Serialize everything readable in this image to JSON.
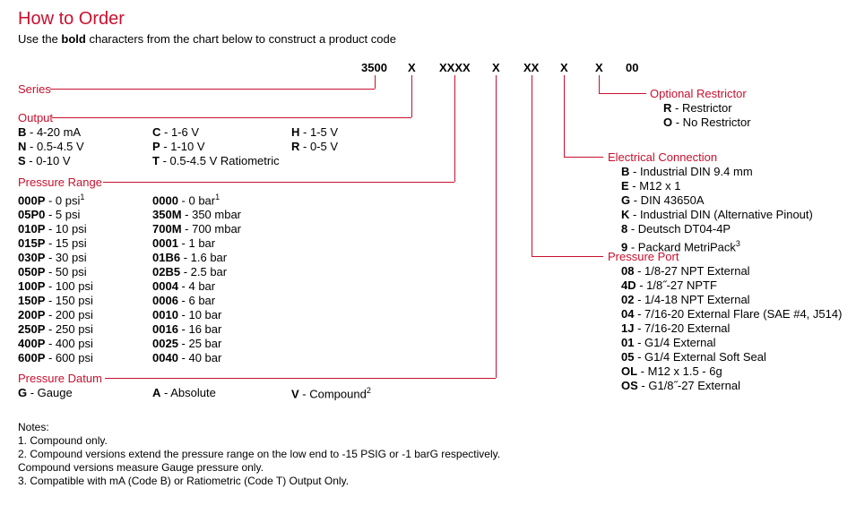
{
  "title": "How to Order",
  "subtitle_parts": {
    "a": "Use the ",
    "b": "bold",
    "c": " characters from the chart below to construct a product code"
  },
  "code_slots": {
    "series": "3500",
    "output": "X",
    "range": "XXXX",
    "datum": "X",
    "port": "XX",
    "conn": "X",
    "restrictor": "X",
    "suffix": "00"
  },
  "labels": {
    "series": "Series",
    "output": "Output",
    "pressure_range": "Pressure Range",
    "pressure_datum": "Pressure Datum",
    "optional_restrictor": "Optional Restrictor",
    "electrical_connection": "Electrical Connection",
    "pressure_port": "Pressure Port",
    "notes": "Notes:"
  },
  "output_opts_col1": [
    {
      "code": "B",
      "desc": " - 4-20 mA"
    },
    {
      "code": "N",
      "desc": " - 0.5-4.5 V"
    },
    {
      "code": "S",
      "desc": " - 0-10 V"
    }
  ],
  "output_opts_col2": [
    {
      "code": "C",
      "desc": " - 1-6 V"
    },
    {
      "code": "P",
      "desc": " - 1-10 V"
    },
    {
      "code": "T",
      "desc": " - 0.5-4.5 V Ratiometric"
    }
  ],
  "output_opts_col3": [
    {
      "code": "H",
      "desc": " - 1-5 V"
    },
    {
      "code": "R",
      "desc": " - 0-5 V"
    }
  ],
  "pressure_range_col1": [
    {
      "code": "000P",
      "desc": " - 0 psi",
      "sup": "1"
    },
    {
      "code": "05P0",
      "desc": " - 5 psi"
    },
    {
      "code": "010P",
      "desc": " - 10 psi"
    },
    {
      "code": "015P",
      "desc": " - 15 psi"
    },
    {
      "code": "030P",
      "desc": " - 30 psi"
    },
    {
      "code": "050P",
      "desc": " - 50 psi"
    },
    {
      "code": "100P",
      "desc": " - 100 psi"
    },
    {
      "code": "150P",
      "desc": " - 150 psi"
    },
    {
      "code": "200P",
      "desc": " - 200 psi"
    },
    {
      "code": "250P",
      "desc": " - 250 psi"
    },
    {
      "code": "400P",
      "desc": " - 400 psi"
    },
    {
      "code": "600P",
      "desc": " - 600 psi"
    }
  ],
  "pressure_range_col2": [
    {
      "code": "0000",
      "desc": " - 0 bar",
      "sup": "1"
    },
    {
      "code": "350M",
      "desc": " - 350 mbar"
    },
    {
      "code": "700M",
      "desc": " - 700 mbar"
    },
    {
      "code": "0001",
      "desc": " - 1 bar"
    },
    {
      "code": "01B6",
      "desc": " - 1.6 bar"
    },
    {
      "code": "02B5",
      "desc": " - 2.5 bar"
    },
    {
      "code": "0004",
      "desc": " - 4 bar"
    },
    {
      "code": "0006",
      "desc": " - 6 bar"
    },
    {
      "code": "0010",
      "desc": " - 10 bar"
    },
    {
      "code": "0016",
      "desc": " - 16 bar"
    },
    {
      "code": "0025",
      "desc": " - 25 bar"
    },
    {
      "code": "0040",
      "desc": " - 40 bar"
    }
  ],
  "pressure_datum": [
    {
      "code": "G",
      "desc": " - Gauge"
    },
    {
      "code": "A",
      "desc": " - Absolute"
    },
    {
      "code": "V",
      "desc": " - Compound",
      "sup": "2"
    }
  ],
  "optional_restrictor": [
    {
      "code": "R",
      "desc": " - Restrictor"
    },
    {
      "code": "O",
      "desc": " - No Restrictor"
    }
  ],
  "electrical_connection": [
    {
      "code": "B",
      "desc": " - Industrial DIN 9.4 mm"
    },
    {
      "code": "E",
      "desc": " - M12 x 1"
    },
    {
      "code": "G",
      "desc": " - DIN 43650A"
    },
    {
      "code": "K",
      "desc": " - Industrial DIN (Alternative Pinout)"
    },
    {
      "code": "8",
      "desc": " - Deutsch DT04-4P"
    },
    {
      "code": "9",
      "desc": " - Packard MetriPack",
      "sup": "3"
    }
  ],
  "pressure_port": [
    {
      "code": "08",
      "desc": " - 1/8-27 NPT External"
    },
    {
      "code": "4D",
      "desc": " - 1/8˝-27 NPTF"
    },
    {
      "code": "02",
      "desc": " - 1/4-18 NPT External"
    },
    {
      "code": "04",
      "desc": " - 7/16-20 External Flare (SAE #4, J514)"
    },
    {
      "code": "1J",
      "desc": " - 7/16-20 External"
    },
    {
      "code": "01",
      "desc": " - G1/4 External"
    },
    {
      "code": "05",
      "desc": " - G1/4 External Soft Seal"
    },
    {
      "code": "OL",
      "desc": " - M12 x 1.5 - 6g"
    },
    {
      "code": "OS",
      "desc": " - G1/8˝-27 External"
    }
  ],
  "notes": [
    "1.  Compound only.",
    "2.  Compound versions extend the pressure range on the low end to -15 PSIG or -1 barG respectively.",
    "     Compound versions measure Gauge pressure only.",
    "3.  Compatible with mA (Code B) or Ratiometric (Code T) Output Only."
  ],
  "colors": {
    "accent": "#c8102e",
    "text": "#000000",
    "bg": "#ffffff"
  }
}
